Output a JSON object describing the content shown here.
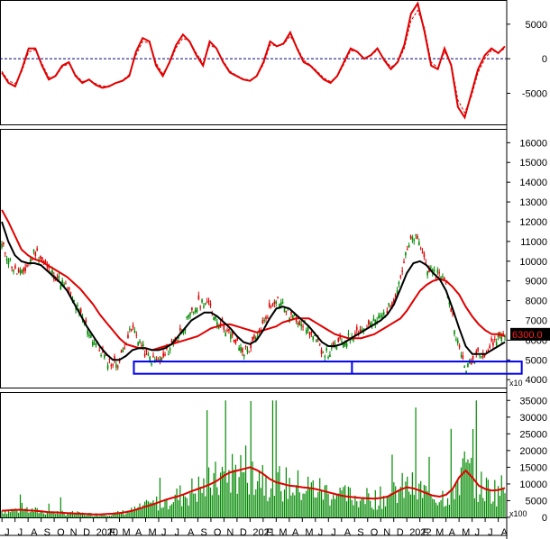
{
  "chart_data": [
    {
      "type": "line",
      "panel": "oscillator",
      "series": [],
      "ylim": [
        -9500,
        8500
      ],
      "ticks": [
        "5000",
        "0",
        "-5000"
      ],
      "tick_values": [
        5000,
        0,
        -5000
      ],
      "zero_line": 0,
      "values_main": [
        -2000,
        -3500,
        -4000,
        -1500,
        1500,
        1500,
        -1000,
        -3000,
        -2500,
        -1000,
        -500,
        -2500,
        -3500,
        -3000,
        -3800,
        -4200,
        -4000,
        -3500,
        -3200,
        -2500,
        1000,
        3000,
        2500,
        -1000,
        -2500,
        -500,
        2000,
        3500,
        2500,
        500,
        -1000,
        2500,
        1500,
        -500,
        -2000,
        -2500,
        -3000,
        -3200,
        -2500,
        -500,
        2500,
        1800,
        2200,
        3800,
        1500,
        -500,
        -1000,
        -2000,
        -3000,
        -3500,
        -2500,
        -500,
        1500,
        1000,
        0,
        500,
        1500,
        -200,
        -1500,
        -500,
        2000,
        6500,
        8000,
        4000,
        -1000,
        -1500,
        1500,
        -1000,
        -7000,
        -8500,
        -5000,
        -1500,
        500,
        1500,
        800,
        1800
      ],
      "values_signal": [
        -1800,
        -3200,
        -3600,
        -1800,
        1000,
        1300,
        -700,
        -2700,
        -2600,
        -1200,
        -700,
        -2300,
        -3300,
        -3100,
        -3600,
        -4000,
        -3900,
        -3500,
        -3100,
        -2300,
        500,
        2500,
        2300,
        -600,
        -2200,
        -700,
        1600,
        3000,
        2500,
        800,
        -700,
        2000,
        1500,
        -300,
        -1800,
        -2400,
        -2900,
        -3100,
        -2600,
        -800,
        2000,
        1900,
        2100,
        3300,
        1700,
        -200,
        -900,
        -1800,
        -2800,
        -3300,
        -2600,
        -800,
        1200,
        1000,
        100,
        400,
        1300,
        0,
        -1200,
        -600,
        1500,
        5500,
        7000,
        4500,
        -500,
        -1300,
        1000,
        -700,
        -6000,
        -7800,
        -5500,
        -2000,
        0,
        1200,
        900,
        1500
      ]
    },
    {
      "type": "line",
      "panel": "price",
      "series": [],
      "ylim": [
        3600,
        16700
      ],
      "ticks": [
        "16000",
        "15000",
        "14000",
        "13000",
        "12000",
        "11000",
        "10000",
        "9000",
        "8000",
        "7000",
        "6000",
        "5000",
        "4000"
      ],
      "tick_values": [
        16000,
        15000,
        14000,
        13000,
        12000,
        11000,
        10000,
        9000,
        8000,
        7000,
        6000,
        5000,
        4000
      ],
      "last_price_label": "6300.0",
      "last_price": 6300,
      "multiplier_label": "x10",
      "close": [
        10800,
        10200,
        9500,
        9300,
        9800,
        10500,
        10200,
        9600,
        9300,
        9000,
        8600,
        8000,
        7300,
        6700,
        6000,
        5500,
        5000,
        4800,
        4900,
        6000,
        6600,
        6000,
        5300,
        5000,
        4900,
        5200,
        5800,
        6200,
        6800,
        7300,
        7800,
        8000,
        7600,
        7000,
        6700,
        6200,
        5800,
        5400,
        5600,
        6100,
        6800,
        7600,
        8200,
        7800,
        7300,
        7100,
        6900,
        6500,
        6000,
        5500,
        5300,
        5700,
        5900,
        6100,
        6400,
        6500,
        6700,
        6900,
        7200,
        7500,
        8100,
        9200,
        10500,
        11300,
        10800,
        9800,
        9300,
        9500,
        8800,
        7200,
        5500,
        4600,
        4900,
        5500,
        5300,
        5800,
        6200,
        6300
      ],
      "ma_red": [
        12600,
        12000,
        11300,
        10600,
        10300,
        10100,
        10000,
        9800,
        9600,
        9400,
        9200,
        8900,
        8600,
        8200,
        7800,
        7300,
        6900,
        6500,
        6100,
        5800,
        5700,
        5600,
        5600,
        5500,
        5600,
        5700,
        5800,
        5900,
        6000,
        6100,
        6200,
        6400,
        6600,
        6700,
        6800,
        6800,
        6700,
        6600,
        6500,
        6400,
        6500,
        6600,
        6700,
        6900,
        7000,
        7100,
        7100,
        7100,
        6900,
        6700,
        6500,
        6300,
        6200,
        6100,
        6100,
        6100,
        6200,
        6300,
        6500,
        6700,
        6900,
        7100,
        7500,
        8000,
        8500,
        8800,
        9000,
        9100,
        9000,
        8700,
        8300,
        7700,
        7200,
        6800,
        6500,
        6300,
        6300,
        6200
      ],
      "ma_black": [
        12000,
        11000,
        10300,
        10000,
        9900,
        9900,
        9800,
        9500,
        9200,
        8900,
        8500,
        7900,
        7300,
        6700,
        6200,
        5700,
        5300,
        5000,
        5000,
        5200,
        5500,
        5600,
        5600,
        5500,
        5500,
        5600,
        5800,
        6200,
        6600,
        7000,
        7200,
        7400,
        7400,
        7200,
        6900,
        6600,
        6200,
        5900,
        5800,
        6000,
        6500,
        7100,
        7600,
        7700,
        7600,
        7300,
        7000,
        6700,
        6300,
        5900,
        5700,
        5700,
        5800,
        6000,
        6200,
        6400,
        6600,
        6800,
        7000,
        7300,
        7800,
        8600,
        9400,
        9900,
        10000,
        9800,
        9400,
        9100,
        8500,
        7600,
        6600,
        5700,
        5300,
        5300,
        5300,
        5500,
        5700,
        5900
      ]
    },
    {
      "type": "bar",
      "panel": "volume",
      "series": [],
      "ylim": [
        0,
        37500
      ],
      "ticks": [
        "35000",
        "30000",
        "25000",
        "20000",
        "15000",
        "10000",
        "5000",
        "0"
      ],
      "tick_values": [
        35000,
        30000,
        25000,
        20000,
        15000,
        10000,
        5000,
        0
      ],
      "multiplier_label": "x100",
      "bar_count": 300,
      "seed": 7,
      "vol_ma": [
        2000,
        2100,
        2200,
        2300,
        2100,
        2000,
        1800,
        1600,
        1500,
        1400,
        1300,
        1200,
        1100,
        1000,
        900,
        900,
        1000,
        1100,
        1300,
        1600,
        2000,
        2600,
        3200,
        3800,
        4500,
        5200,
        5800,
        6300,
        7000,
        7800,
        8500,
        9200,
        10000,
        11000,
        12500,
        13500,
        14000,
        14500,
        15000,
        14200,
        13000,
        11500,
        10500,
        10000,
        9500,
        9300,
        9000,
        8800,
        8500,
        8000,
        7500,
        7000,
        6500,
        6200,
        6000,
        5800,
        5700,
        5600,
        5800,
        6200,
        7200,
        8300,
        9000,
        8700,
        8000,
        7200,
        6500,
        6200,
        6800,
        8500,
        12000,
        14000,
        12000,
        9500,
        8500,
        8000,
        8200,
        8800
      ]
    }
  ],
  "xaxis": {
    "labels": [
      "J",
      "J",
      "A",
      "S",
      "O",
      "N",
      "D",
      "2020",
      "F",
      "M",
      "A",
      "M",
      "J",
      "J",
      "A",
      "S",
      "O",
      "N",
      "D",
      "2021",
      "F",
      "M",
      "A",
      "M",
      "J",
      "J",
      "A",
      "S",
      "O",
      "N",
      "D",
      "2022",
      "F",
      "M",
      "A",
      "M",
      "J",
      "J",
      "A"
    ],
    "start_index": 0
  },
  "zone_box": {
    "y_bottom": 4300,
    "y_top": 4920,
    "x_start_month": 10.1,
    "x_end_month": 39.8,
    "divider_month": 26.8
  },
  "colors": {
    "red": "#e00000",
    "green": "#008a00",
    "black": "#000000",
    "blue": "#0000ee",
    "zero_line": "#000080",
    "grid": "#000000"
  }
}
